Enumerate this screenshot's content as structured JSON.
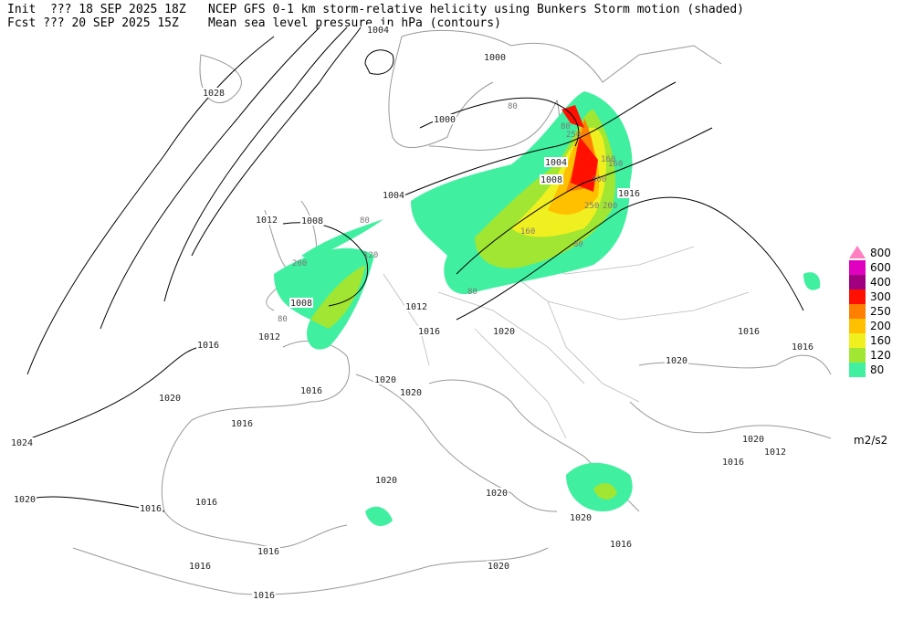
{
  "header": {
    "init": "Init  ??? 18 SEP 2025 18Z",
    "fcst": "Fcst ??? 20 SEP 2025 15Z",
    "field1": "NCEP GFS 0-1 km storm-relative helicity using Bunkers Storm motion (shaded)",
    "field2": "Mean sea level pressure in hPa (contours)"
  },
  "legend": {
    "levels": [
      {
        "value": 800,
        "color": "#ff80c0"
      },
      {
        "value": 600,
        "color": "#e000c0"
      },
      {
        "value": 400,
        "color": "#a00080"
      },
      {
        "value": 300,
        "color": "#ff1000"
      },
      {
        "value": 250,
        "color": "#ff8000"
      },
      {
        "value": 200,
        "color": "#ffc000"
      },
      {
        "value": 160,
        "color": "#f0f020"
      },
      {
        "value": 120,
        "color": "#a0e632"
      },
      {
        "value": 80,
        "color": "#40f0a0"
      }
    ],
    "units": "m2/s2"
  },
  "contour_labels": [
    "1004",
    "1000",
    "1028",
    "1000",
    "1004",
    "1008",
    "1016",
    "1004",
    "1008",
    "1012",
    "1008",
    "1012",
    "1012",
    "1016",
    "1020",
    "1016",
    "1016",
    "1016",
    "1020",
    "1020",
    "1020",
    "1016",
    "1020",
    "1016",
    "1024",
    "1020",
    "1012",
    "1016",
    "1020",
    "1020",
    "1020",
    "1016",
    "1016",
    "1020",
    "1016",
    "1016",
    "1016",
    "1020",
    "1016"
  ],
  "helicity_labels": [
    "80",
    "80",
    "250",
    "160",
    "160",
    "300",
    "250",
    "200",
    "160",
    "80",
    "80",
    "120",
    "200",
    "80",
    "80"
  ]
}
